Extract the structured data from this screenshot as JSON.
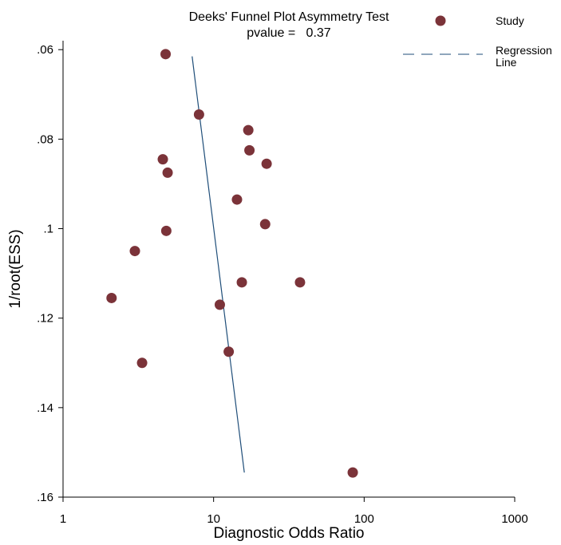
{
  "chart_data": {
    "type": "scatter",
    "title": "Deeks' Funnel Plot Asymmetry Test",
    "subtitle": "pvalue =   0.37",
    "xlabel": "Diagnostic Odds Ratio",
    "ylabel": "1/root(ESS)",
    "x_scale": "log",
    "xlim": [
      1,
      1000
    ],
    "ylim": [
      0.16,
      0.058
    ],
    "y_reversed": true,
    "x_ticks": [
      1,
      10,
      100,
      1000
    ],
    "x_tick_labels": [
      "1",
      "10",
      "100",
      "1000"
    ],
    "y_ticks": [
      0.06,
      0.08,
      0.1,
      0.12,
      0.14,
      0.16
    ],
    "y_tick_labels": [
      ".06",
      ".08",
      ".1",
      ".12",
      ".14",
      ".16"
    ],
    "grid": false,
    "legend_position": "top-right",
    "colors": {
      "study": "#7b3339",
      "regression": "#1f4e79"
    },
    "series": [
      {
        "name": "Study",
        "type": "scatter",
        "points": [
          {
            "x": 4.8,
            "y": 0.061
          },
          {
            "x": 8.0,
            "y": 0.0745
          },
          {
            "x": 17.0,
            "y": 0.078
          },
          {
            "x": 17.3,
            "y": 0.0825
          },
          {
            "x": 4.6,
            "y": 0.0845
          },
          {
            "x": 22.5,
            "y": 0.0855
          },
          {
            "x": 4.95,
            "y": 0.0875
          },
          {
            "x": 14.3,
            "y": 0.0935
          },
          {
            "x": 22.0,
            "y": 0.099
          },
          {
            "x": 4.85,
            "y": 0.1005
          },
          {
            "x": 3.0,
            "y": 0.105
          },
          {
            "x": 15.4,
            "y": 0.112
          },
          {
            "x": 37.5,
            "y": 0.112
          },
          {
            "x": 2.1,
            "y": 0.1155
          },
          {
            "x": 11.0,
            "y": 0.117
          },
          {
            "x": 12.6,
            "y": 0.1275
          },
          {
            "x": 3.35,
            "y": 0.13
          },
          {
            "x": 84.0,
            "y": 0.1545
          }
        ]
      },
      {
        "name": "Regression Line",
        "type": "line",
        "dashed_in_legend": true,
        "points": [
          {
            "x": 7.2,
            "y": 0.0615
          },
          {
            "x": 16.0,
            "y": 0.1545
          }
        ]
      }
    ],
    "legend": [
      {
        "label": "Study",
        "marker": "circle"
      },
      {
        "label_lines": [
          "Regression",
          "Line"
        ],
        "marker": "dashed-line"
      }
    ]
  }
}
